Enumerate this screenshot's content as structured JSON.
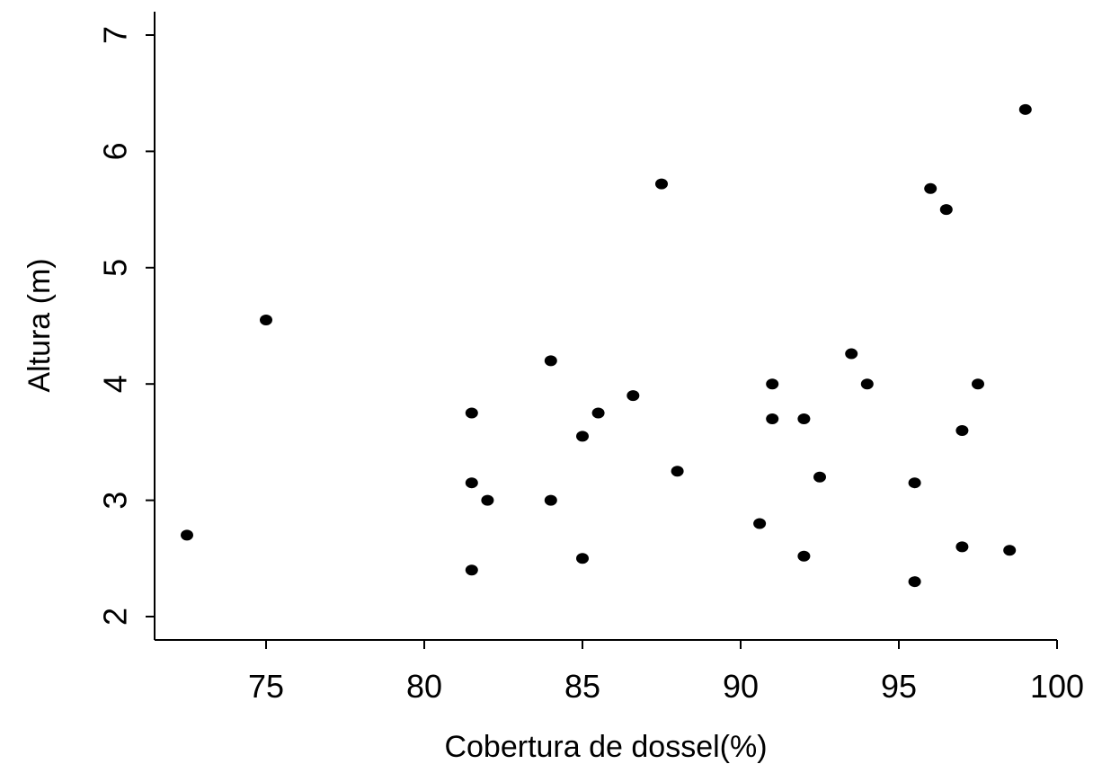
{
  "chart_data": {
    "type": "scatter",
    "title": "",
    "xlabel": "Cobertura de dossel(%)",
    "ylabel": "Altura (m)",
    "xlim": [
      71.5,
      100
    ],
    "ylim": [
      1.9,
      7.2
    ],
    "xticks": [
      75,
      80,
      85,
      90,
      95,
      100
    ],
    "yticks": [
      2,
      3,
      4,
      5,
      6,
      7
    ],
    "grid": false,
    "series": [
      {
        "points": [
          [
            72.5,
            2.7
          ],
          [
            75.0,
            4.55
          ],
          [
            81.5,
            3.75
          ],
          [
            81.5,
            3.15
          ],
          [
            81.5,
            2.4
          ],
          [
            82.0,
            3.0
          ],
          [
            84.0,
            4.2
          ],
          [
            84.0,
            3.0
          ],
          [
            85.0,
            3.55
          ],
          [
            85.0,
            2.5
          ],
          [
            85.5,
            3.75
          ],
          [
            86.6,
            3.9
          ],
          [
            87.5,
            5.72
          ],
          [
            88.0,
            3.25
          ],
          [
            90.6,
            2.8
          ],
          [
            91.0,
            4.0
          ],
          [
            91.0,
            3.7
          ],
          [
            92.0,
            3.7
          ],
          [
            92.0,
            2.52
          ],
          [
            92.5,
            3.2
          ],
          [
            93.5,
            4.26
          ],
          [
            94.0,
            4.0
          ],
          [
            95.5,
            3.15
          ],
          [
            95.5,
            2.3
          ],
          [
            96.0,
            5.68
          ],
          [
            96.5,
            5.5
          ],
          [
            97.0,
            3.6
          ],
          [
            97.0,
            2.6
          ],
          [
            97.5,
            4.0
          ],
          [
            98.5,
            2.57
          ],
          [
            99.0,
            6.36
          ]
        ]
      }
    ]
  }
}
